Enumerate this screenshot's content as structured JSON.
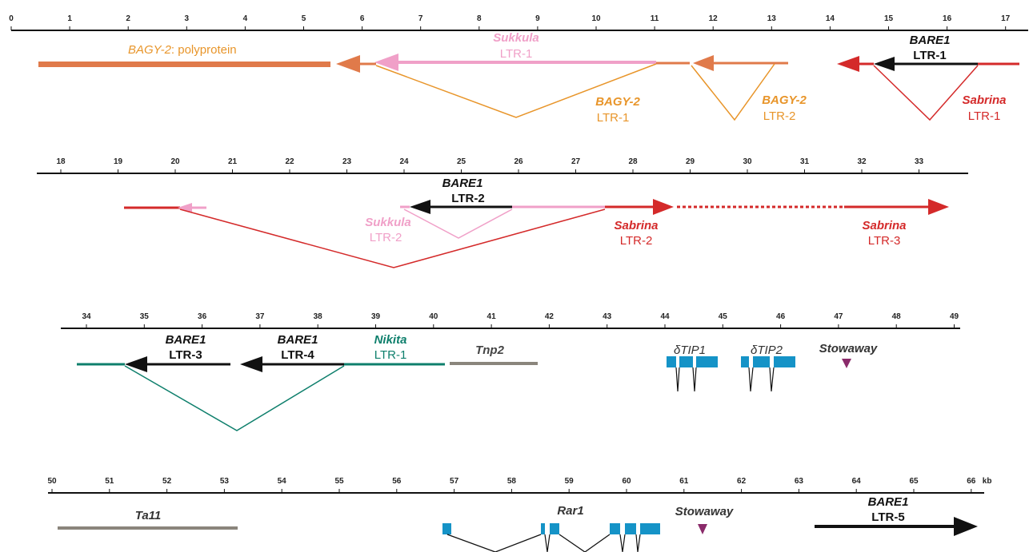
{
  "axis_unit": "kb",
  "scale_rows": [
    {
      "ticks": [
        "0",
        "1",
        "2",
        "3",
        "4",
        "5",
        "6",
        "7",
        "8",
        "9",
        "10",
        "11",
        "12",
        "13",
        "14",
        "15",
        "16",
        "17"
      ]
    },
    {
      "ticks": [
        "18",
        "19",
        "20",
        "21",
        "22",
        "23",
        "24",
        "25",
        "26",
        "27",
        "28",
        "29",
        "30",
        "31",
        "32",
        "33"
      ]
    },
    {
      "ticks": [
        "34",
        "35",
        "36",
        "37",
        "38",
        "39",
        "40",
        "41",
        "42",
        "43",
        "44",
        "45",
        "46",
        "47",
        "48",
        "49"
      ]
    },
    {
      "ticks": [
        "50",
        "51",
        "52",
        "53",
        "54",
        "55",
        "56",
        "57",
        "58",
        "59",
        "60",
        "61",
        "62",
        "63",
        "64",
        "65",
        "66"
      ]
    }
  ],
  "colors": {
    "bagy2": "#e07a4a",
    "bagy2_label": "#e8952a",
    "sukkula": "#f0a0c8",
    "bare1": "#111111",
    "sabrina": "#d42a2a",
    "nikita": "#0e7f6c",
    "gray": "#8a857c",
    "exon": "#1593c7",
    "stowaway": "#8a2a6a"
  },
  "labels": {
    "bagy2_polyprotein_name": "BAGY-2",
    "bagy2_polyprotein_suffix": ": polyprotein",
    "sukkula_ltr1": [
      "Sukkula",
      "LTR-1"
    ],
    "bagy2_ltr1": [
      "BAGY-2",
      "LTR-1"
    ],
    "bagy2_ltr2": [
      "BAGY-2",
      "LTR-2"
    ],
    "bare1_ltr1": [
      "BARE1",
      "LTR-1"
    ],
    "sabrina_ltr1": [
      "Sabrina",
      "LTR-1"
    ],
    "bare1_ltr2": [
      "BARE1",
      "LTR-2"
    ],
    "sukkula_ltr2": [
      "Sukkula",
      "LTR-2"
    ],
    "sabrina_ltr2": [
      "Sabrina",
      "LTR-2"
    ],
    "sabrina_ltr3": [
      "Sabrina",
      "LTR-3"
    ],
    "bare1_ltr3": [
      "BARE1",
      "LTR-3"
    ],
    "bare1_ltr4": [
      "BARE1",
      "LTR-4"
    ],
    "nikita_ltr1": [
      "Nikita",
      "LTR-1"
    ],
    "tnp2": "Tnp2",
    "dtip1": "δTIP1",
    "dtip2": "δTIP2",
    "stowaway_1": "Stowaway",
    "ta11": "Ta11",
    "rar1": "Rar1",
    "stowaway_2": "Stowaway",
    "bare1_ltr5": [
      "BARE1",
      "LTR-5"
    ]
  }
}
